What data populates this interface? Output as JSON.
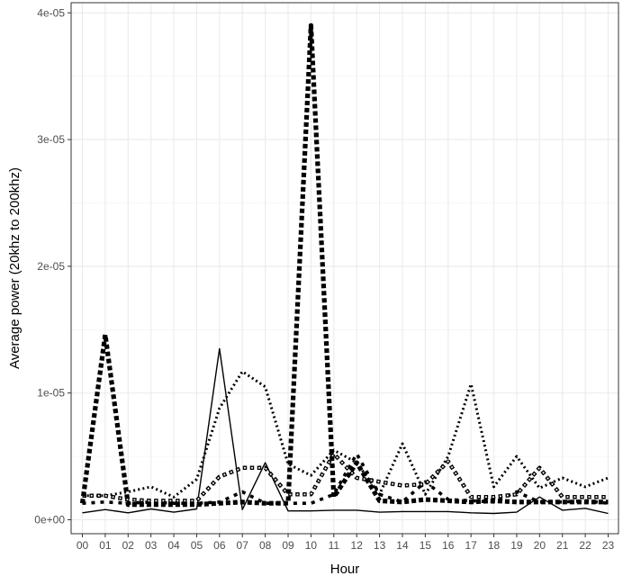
{
  "chart_data": {
    "type": "line",
    "xlabel": "Hour",
    "ylabel": "Average power (20khz to 200khz)",
    "categories": [
      "00",
      "01",
      "02",
      "03",
      "04",
      "05",
      "06",
      "07",
      "08",
      "09",
      "10",
      "11",
      "12",
      "13",
      "14",
      "15",
      "16",
      "17",
      "18",
      "19",
      "20",
      "21",
      "22",
      "23"
    ],
    "y_ticks": [
      {
        "value": 0,
        "label": "0e+00"
      },
      {
        "value": 1e-05,
        "label": "1e-05"
      },
      {
        "value": 2e-05,
        "label": "2e-05"
      },
      {
        "value": 3e-05,
        "label": "3e-05"
      },
      {
        "value": 4e-05,
        "label": "4e-05"
      }
    ],
    "ylim": [
      -1.1e-06,
      4.08e-05
    ],
    "grid": true,
    "series": [
      {
        "style": "solid",
        "values": [
          5.5e-07,
          8e-07,
          5.5e-07,
          8.5e-07,
          6e-07,
          8.5e-07,
          1.35e-05,
          8e-07,
          4.5e-06,
          7e-07,
          7e-07,
          7.5e-07,
          7.5e-07,
          6e-07,
          6.5e-07,
          6.5e-07,
          6.5e-07,
          5.5e-07,
          5e-07,
          6e-07,
          1.8e-06,
          7.5e-07,
          9e-07,
          5e-07
        ]
      },
      {
        "style": "dotted",
        "values": [
          1.9e-06,
          1.9e-06,
          2.2e-06,
          2.6e-06,
          1.8e-06,
          3.2e-06,
          8.8e-06,
          1.17e-05,
          1.05e-05,
          4.4e-06,
          3.5e-06,
          5.5e-06,
          4.5e-06,
          2e-06,
          6e-06,
          2e-06,
          5e-06,
          1.07e-05,
          2.6e-06,
          5e-06,
          2.5e-06,
          3.3e-06,
          2.6e-06,
          3.3e-06
        ]
      },
      {
        "style": "dashed",
        "values": [
          1.3e-06,
          1.4e-06,
          1.3e-06,
          1.4e-06,
          1.3e-06,
          1.3e-06,
          1.4e-06,
          2.2e-06,
          1.3e-06,
          1.3e-06,
          1.3e-06,
          2e-06,
          5.2e-06,
          2e-06,
          1.4e-06,
          3e-06,
          1.6e-06,
          1.5e-06,
          1.4e-06,
          2.2e-06,
          1.4e-06,
          1.4e-06,
          1.5e-06,
          1.3e-06
        ]
      },
      {
        "style": "square-dots",
        "values": [
          1.9e-06,
          1.9e-06,
          1.6e-06,
          1.5e-06,
          1.5e-06,
          1.5e-06,
          3.4e-06,
          4.1e-06,
          4.1e-06,
          2e-06,
          2e-06,
          5.2e-06,
          3.3e-06,
          3e-06,
          2.7e-06,
          2.8e-06,
          4.6e-06,
          1.8e-06,
          1.8e-06,
          2e-06,
          4.1e-06,
          1.8e-06,
          1.8e-06,
          1.8e-06
        ]
      },
      {
        "style": "heavy-dashed",
        "values": [
          1.3e-06,
          1.46e-05,
          1.2e-06,
          1.2e-06,
          1.2e-06,
          1.2e-06,
          1.3e-06,
          1.4e-06,
          1.3e-06,
          1.3e-06,
          3.9e-05,
          1.8e-06,
          4.5e-06,
          1.5e-06,
          1.4e-06,
          1.6e-06,
          1.5e-06,
          1.4e-06,
          1.5e-06,
          1.4e-06,
          1.4e-06,
          1.4e-06,
          1.4e-06,
          1.4e-06
        ]
      }
    ]
  }
}
